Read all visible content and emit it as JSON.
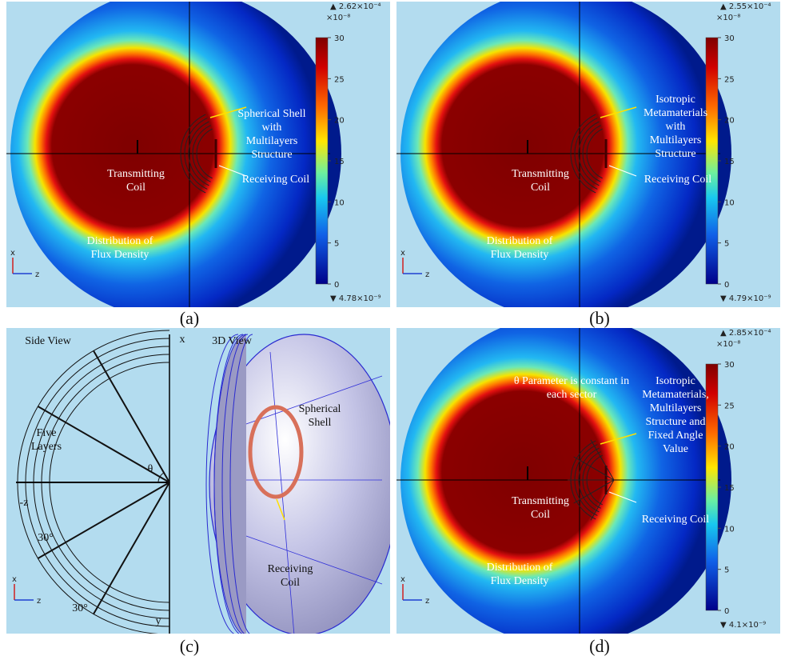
{
  "panels": [
    {
      "type": "map",
      "label": "(a)",
      "annotations": [
        {
          "lines": [
            "Spherical Shell",
            "with",
            "Multilayers",
            "Structure"
          ]
        },
        {
          "lines": [
            "Transmitting",
            "Coil"
          ]
        },
        {
          "lines": [
            "Receiving Coil"
          ]
        },
        {
          "lines": [
            "Distribution of",
            "Flux Density"
          ]
        }
      ],
      "axes": [
        "x",
        "z"
      ],
      "colorbar": {
        "max": "▲ 2.62×10⁻⁴",
        "scale": "×10⁻⁸",
        "ticks": [
          "30",
          "25",
          "20",
          "15",
          "10",
          "5",
          "0"
        ],
        "min": "▼ 4.78×10⁻⁹"
      }
    },
    {
      "type": "map",
      "label": "(b)",
      "annotations": [
        {
          "lines": [
            "Isotropic",
            "Metamaterials",
            "with",
            "Multilayers",
            "Structure"
          ]
        },
        {
          "lines": [
            "Transmitting",
            "Coil"
          ]
        },
        {
          "lines": [
            "Receiving Coil"
          ]
        },
        {
          "lines": [
            "Distribution of",
            "Flux Density"
          ]
        }
      ],
      "axes": [
        "x",
        "z"
      ],
      "colorbar": {
        "max": "▲ 2.55×10⁻⁴",
        "scale": "×10⁻⁸",
        "ticks": [
          "30",
          "25",
          "20",
          "15",
          "10",
          "5",
          "0"
        ],
        "min": "▼ 4.79×10⁻⁹"
      }
    },
    {
      "type": "diagram",
      "label": "(c)",
      "annotations": [
        {
          "lines": [
            "Side View"
          ]
        },
        {
          "lines": [
            "3D View"
          ]
        },
        {
          "lines": [
            "x"
          ]
        },
        {
          "lines": [
            "Five",
            "Layers"
          ]
        },
        {
          "lines": [
            "-z"
          ]
        },
        {
          "lines": [
            "θ"
          ]
        },
        {
          "lines": [
            "30°"
          ]
        },
        {
          "lines": [
            "30°"
          ]
        },
        {
          "lines": [
            "Spherical",
            "Shell"
          ]
        },
        {
          "lines": [
            "Receiving",
            "Coil"
          ]
        },
        {
          "lines": [
            "y"
          ]
        }
      ],
      "axes": [
        "x",
        "z"
      ]
    },
    {
      "type": "map",
      "label": "(d)",
      "annotations": [
        {
          "lines": [
            "θ Parameter is constant in",
            "each sector"
          ]
        },
        {
          "lines": [
            "Isotropic",
            "Metamaterials,",
            "Multilayers",
            "Structure and",
            "Fixed Angle",
            "Value"
          ]
        },
        {
          "lines": [
            "Transmitting",
            "Coil"
          ]
        },
        {
          "lines": [
            "Receiving Coil"
          ]
        },
        {
          "lines": [
            "Distribution of",
            "Flux Density"
          ]
        }
      ],
      "axes": [
        "x",
        "z"
      ],
      "colorbar": {
        "max": "▲ 2.85×10⁻⁴",
        "scale": "×10⁻⁸",
        "ticks": [
          "30",
          "25",
          "20",
          "15",
          "10",
          "5",
          "0"
        ],
        "min": "▼ 4.1×10⁻⁹"
      }
    }
  ]
}
